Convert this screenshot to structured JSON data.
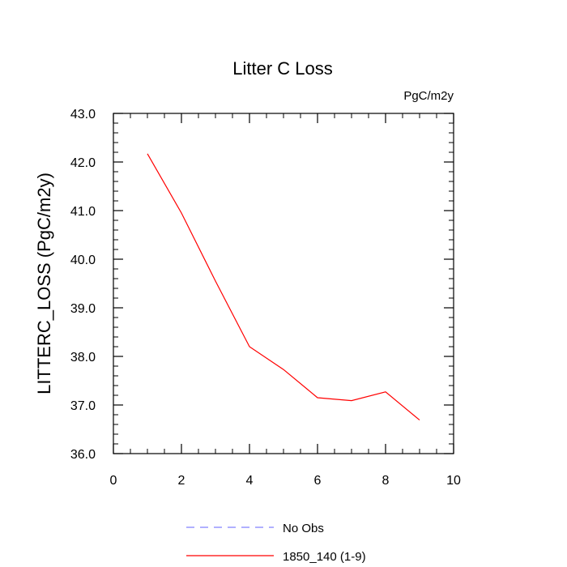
{
  "chart_data": {
    "type": "line",
    "title": "Litter C Loss",
    "units": "PgC/m2y",
    "xlabel": "",
    "ylabel": "LITTERC_LOSS  (PgC/m2y)",
    "xlim": [
      0,
      10
    ],
    "ylim": [
      36.0,
      43.0
    ],
    "x_ticks": [
      0,
      2,
      4,
      6,
      8,
      10
    ],
    "x_tick_labels": [
      "0",
      "2",
      "4",
      "6",
      "8",
      "10"
    ],
    "y_ticks": [
      36.0,
      37.0,
      38.0,
      39.0,
      40.0,
      41.0,
      42.0,
      43.0
    ],
    "y_tick_labels": [
      "36.0",
      "37.0",
      "38.0",
      "39.0",
      "40.0",
      "41.0",
      "42.0",
      "43.0"
    ],
    "grid": false,
    "legend_position": "bottom",
    "series": [
      {
        "name": "No Obs",
        "color": "#8080ff",
        "style": "dashed",
        "x": [],
        "y": []
      },
      {
        "name": "1850_140 (1-9)",
        "color": "#ff0000",
        "style": "solid",
        "x": [
          1,
          2,
          3,
          4,
          5,
          6,
          7,
          8,
          9
        ],
        "y": [
          42.17,
          40.95,
          39.55,
          38.2,
          37.73,
          37.15,
          37.09,
          37.27,
          36.69
        ]
      }
    ]
  }
}
